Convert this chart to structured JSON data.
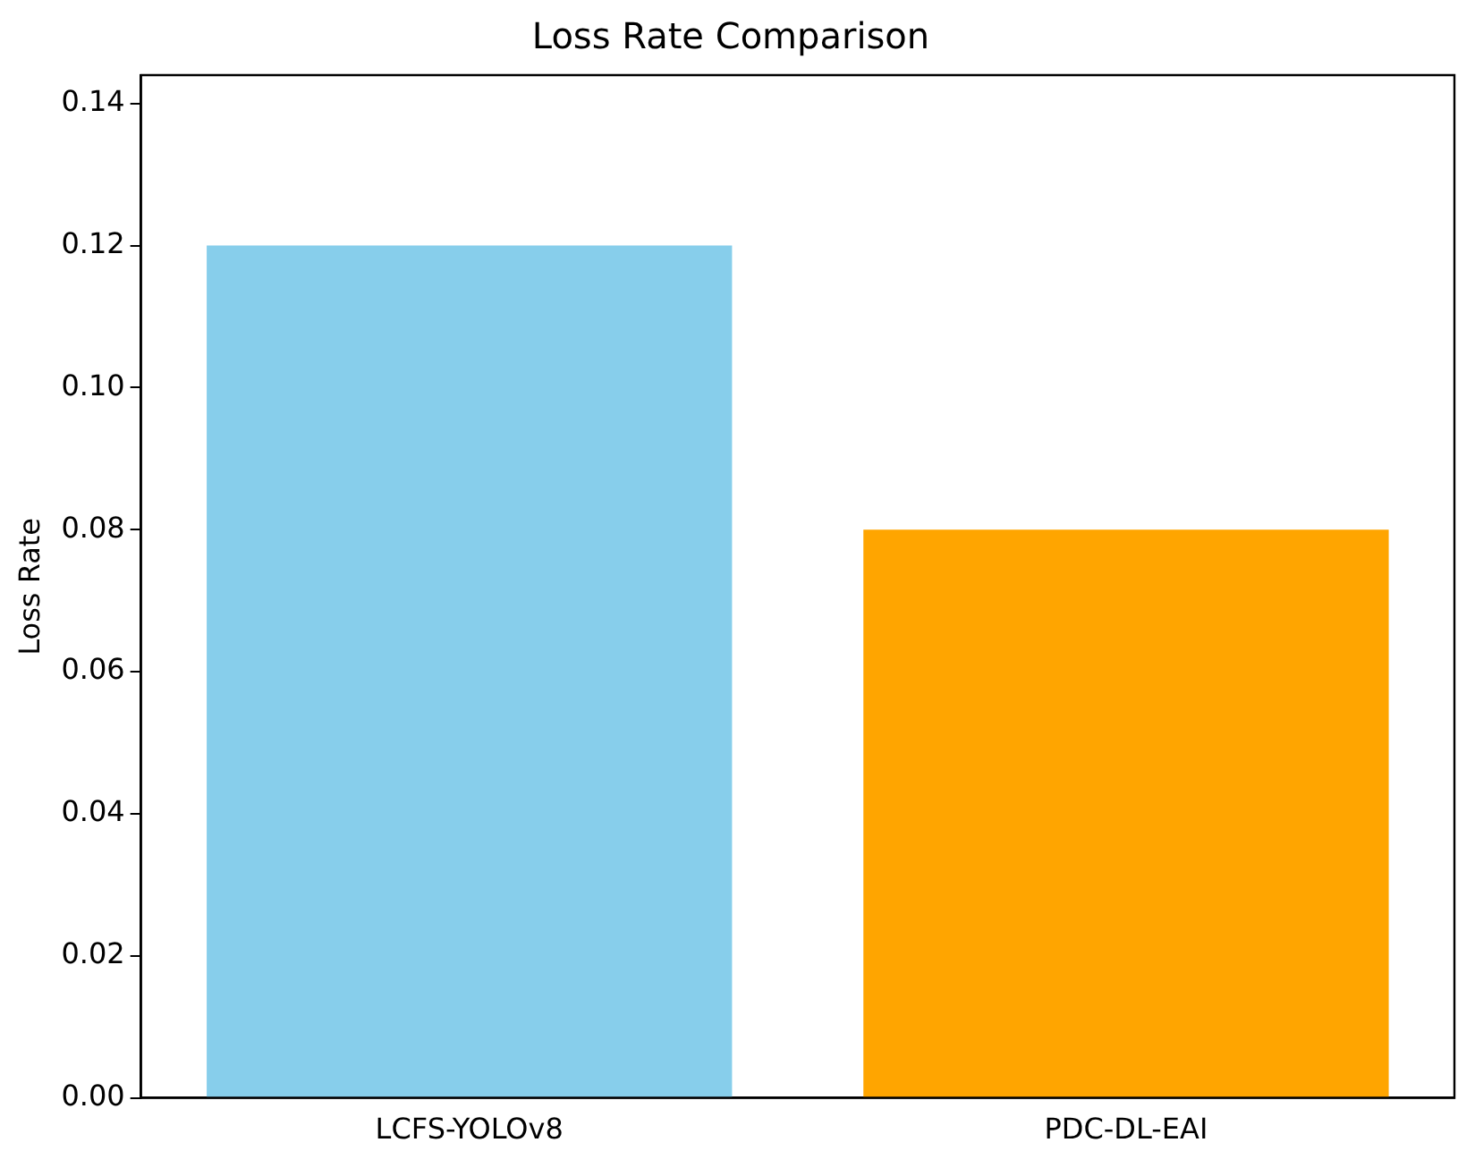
{
  "chart_data": {
    "type": "bar",
    "title": "Loss Rate Comparison",
    "ylabel": "Loss Rate",
    "categories": [
      "LCFS-YOLOv8",
      "PDC-DL-EAI"
    ],
    "values": [
      0.12,
      0.08
    ],
    "colors": [
      "#87ceeb",
      "#ffa500"
    ],
    "ylim": [
      0,
      0.144
    ],
    "yticks": [
      {
        "value": 0,
        "label": "0.00"
      },
      {
        "value": 0.02,
        "label": "0.02"
      },
      {
        "value": 0.04,
        "label": "0.04"
      },
      {
        "value": 0.06,
        "label": "0.06"
      },
      {
        "value": 0.08,
        "label": "0.08"
      },
      {
        "value": 0.1,
        "label": "0.10"
      },
      {
        "value": 0.12,
        "label": "0.12"
      },
      {
        "value": 0.14,
        "label": "0.14"
      }
    ],
    "grid": false,
    "legend": false
  }
}
